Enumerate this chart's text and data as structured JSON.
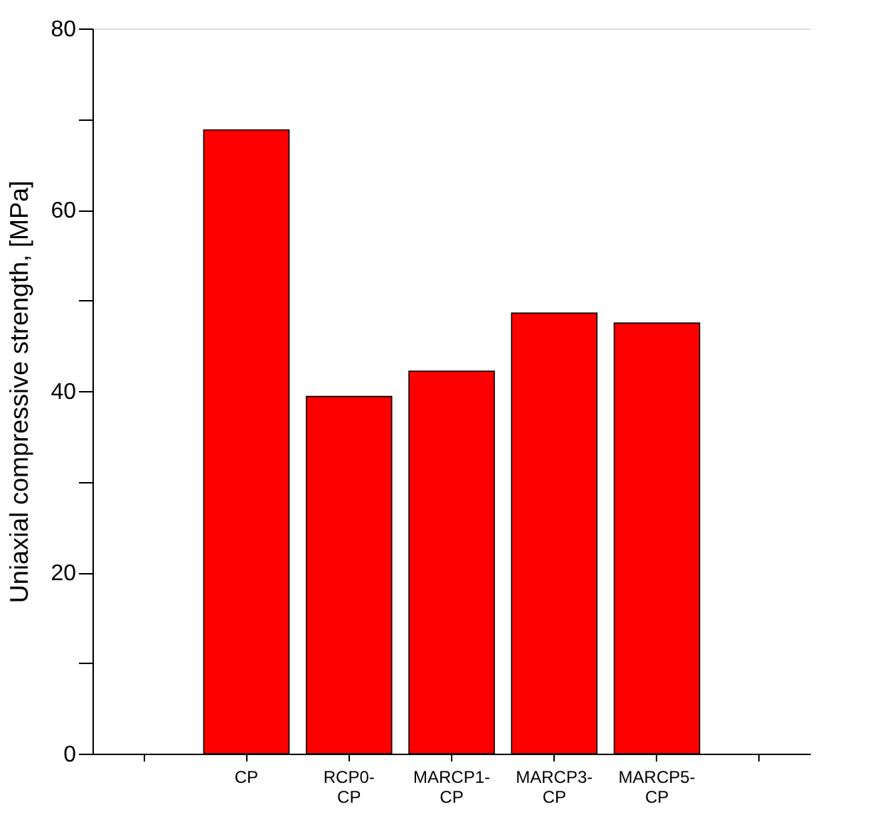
{
  "chart_data": {
    "type": "bar",
    "ylabel": "Uniaxial compressive strength, [MPa]",
    "categories": [
      null,
      "CP",
      "RCP0-CP",
      "MARCP1-CP",
      "MARCP3-CP",
      "MARCP5-CP",
      null
    ],
    "values": [
      null,
      68.8,
      39.4,
      42.2,
      48.6,
      47.5,
      null
    ],
    "color": "#ff0000",
    "ylim": [
      0,
      80
    ],
    "yticks": [
      0,
      {
        "value": 10,
        "label": null
      },
      20,
      {
        "value": 30,
        "label": null
      },
      40,
      {
        "value": 50,
        "label": null
      },
      60,
      {
        "value": 70,
        "label": null
      },
      80
    ],
    "grid": false,
    "legend": false
  }
}
